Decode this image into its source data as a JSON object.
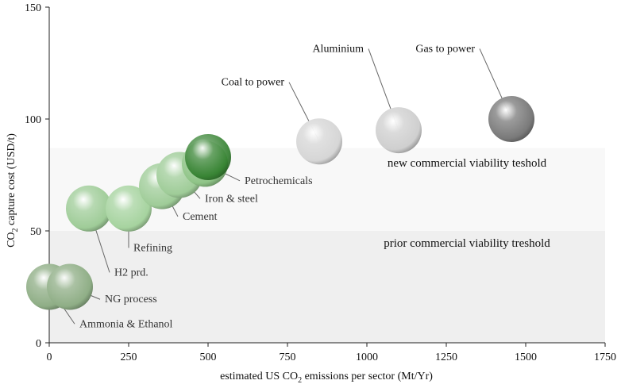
{
  "chart_data": {
    "type": "bubble",
    "xlabel_parts": [
      "estimated US CO",
      "2",
      " emissions per sector (Mt/Yr)"
    ],
    "ylabel_parts": [
      "CO",
      "2",
      " capture cost (USD/t)"
    ],
    "xlim": [
      0,
      1750
    ],
    "ylim": [
      0,
      150
    ],
    "xticks": [
      0,
      250,
      500,
      750,
      1000,
      1250,
      1500,
      1750
    ],
    "yticks": [
      0,
      50,
      100,
      150
    ],
    "grid": false,
    "bands": [
      {
        "label": "prior commercial viability treshold",
        "y_from": 0,
        "y_to": 50,
        "color": "#efefef"
      },
      {
        "label": "new commercial viability teshold",
        "y_from": 50,
        "y_to": 87,
        "color": "#f8f8f8"
      }
    ],
    "points": [
      {
        "label": "Ammonia & Ethanol",
        "x": 0,
        "y": 25,
        "color": "#8fae86",
        "label_x": 95,
        "label_y": 7
      },
      {
        "label": "NG process",
        "x": 65,
        "y": 25,
        "color": "#8fae86",
        "label_x": 175,
        "label_y": 18
      },
      {
        "label": "H2 prd.",
        "x": 125,
        "y": 60,
        "color": "#9fcc98",
        "label_x": 205,
        "label_y": 30
      },
      {
        "label": "Refining",
        "x": 250,
        "y": 60,
        "color": "#a6d39f",
        "label_x": 265,
        "label_y": 41
      },
      {
        "label": "Cement",
        "x": 355,
        "y": 70,
        "color": "#9fcc98",
        "label_x": 420,
        "label_y": 55
      },
      {
        "label": "Iron & steel",
        "x": 410,
        "y": 75,
        "color": "#9fcc98",
        "label_x": 490,
        "label_y": 63
      },
      {
        "label": "Petrochemicals",
        "x": 490,
        "y": 80,
        "color": "#8fc487",
        "label_x": 615,
        "label_y": 71
      },
      {
        "label": "Petrochemicals-top",
        "x": 500,
        "y": 83,
        "color": "#2e7d2a",
        "label_x": null,
        "label_y": null
      },
      {
        "label": "Coal to power",
        "x": 850,
        "y": 90,
        "color": "#d6d6d6",
        "label_x": 740,
        "label_y": 115
      },
      {
        "label": "Aluminium",
        "x": 1100,
        "y": 95,
        "color": "#cfcfcf",
        "label_x": 990,
        "label_y": 130
      },
      {
        "label": "Gas to power",
        "x": 1455,
        "y": 100,
        "color": "#7a7a7a",
        "label_x": 1340,
        "label_y": 130
      }
    ]
  },
  "labels": {
    "band_prior": "prior commercial viability treshold",
    "band_new": "new commercial viability teshold"
  }
}
